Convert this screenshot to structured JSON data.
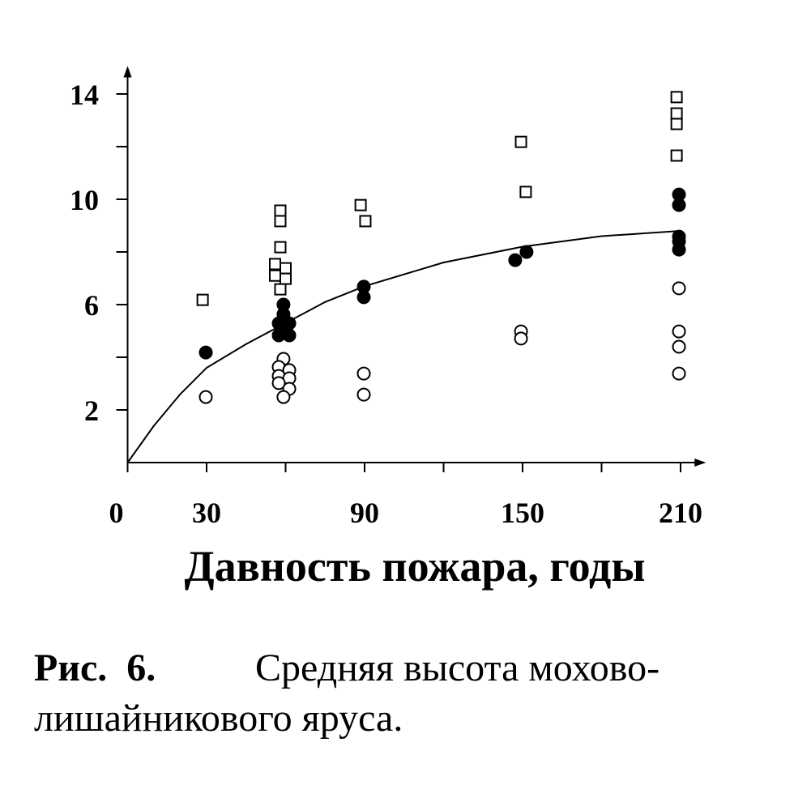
{
  "chart_data": {
    "type": "scatter",
    "xlabel": "Давность пожара, годы",
    "xlim": [
      0,
      219
    ],
    "ylim": [
      0,
      15
    ],
    "xticks": [
      0,
      30,
      90,
      150,
      210
    ],
    "xminor_ticks": [
      60,
      120,
      180
    ],
    "yticks": [
      2,
      6,
      10,
      14
    ],
    "yminor_ticks": [
      4,
      8,
      12
    ],
    "series": [
      {
        "marker": "square",
        "color": "#000000",
        "x": [
          28.5,
          58,
          58,
          58,
          56,
          60,
          56,
          60,
          58,
          88.5,
          90.3,
          149.4,
          151.2,
          208.5,
          208.5,
          208.5,
          208.5
        ],
        "values": [
          6.18,
          9.57,
          9.17,
          8.18,
          7.54,
          7.38,
          7.1,
          6.98,
          6.58,
          9.78,
          9.17,
          12.18,
          10.28,
          13.88,
          13.26,
          12.86,
          11.66
        ]
      },
      {
        "marker": "filled-circle",
        "color": "#000000",
        "x": [
          29.7,
          59.2,
          59.2,
          57.4,
          61.4,
          59.2,
          57.4,
          61.4,
          89.7,
          89.7,
          147.2,
          151.5,
          209.4,
          209.4,
          209.4,
          209.4,
          209.4
        ],
        "values": [
          4.18,
          6.0,
          5.63,
          5.29,
          5.29,
          5.05,
          4.83,
          4.83,
          6.68,
          6.28,
          7.69,
          8.0,
          10.18,
          9.78,
          8.58,
          8.4,
          8.09
        ]
      },
      {
        "marker": "open-circle",
        "color": "#000000",
        "x": [
          29.7,
          59.2,
          57.4,
          61.4,
          57.4,
          61.4,
          57.4,
          61.4,
          59.2,
          89.7,
          89.7,
          149.4,
          149.4,
          209.4,
          209.4,
          209.4,
          209.4
        ],
        "values": [
          2.49,
          3.94,
          3.63,
          3.51,
          3.29,
          3.2,
          3.02,
          2.8,
          2.49,
          3.38,
          2.58,
          4.98,
          4.71,
          6.62,
          4.98,
          4.4,
          3.38
        ]
      },
      {
        "marker": "line",
        "color": "#000000",
        "x": [
          0,
          10,
          20,
          30,
          45,
          60,
          75,
          90,
          120,
          150,
          180,
          210
        ],
        "values": [
          0,
          1.4,
          2.6,
          3.6,
          4.5,
          5.3,
          6.1,
          6.7,
          7.6,
          8.2,
          8.6,
          8.8
        ]
      }
    ]
  },
  "caption": {
    "label": "Рис.  6.",
    "lines": [
      "Средняя высота мохово-",
      "лишайникового яруса."
    ]
  }
}
